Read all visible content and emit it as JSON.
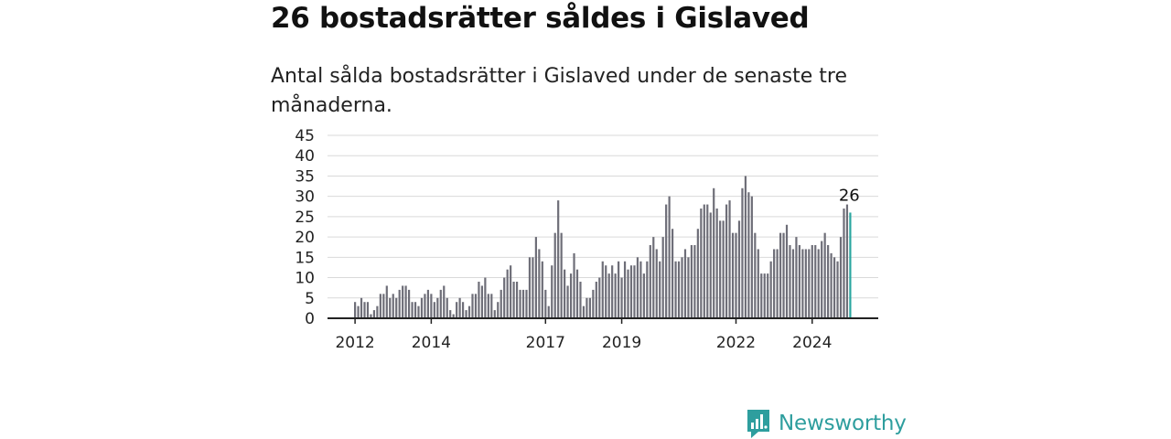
{
  "title": "26 bostadsrätter såldes i Gislaved",
  "subtitle": "Antal sålda bostadsrätter i Gislaved under de senaste tre månaderna.",
  "brand": {
    "name": "Newsworthy",
    "icon": "bar-chart-bubble-icon",
    "color": "#2e9e9e"
  },
  "chart_data": {
    "type": "bar",
    "title": "",
    "xlabel": "",
    "ylabel": "",
    "ylim": [
      0,
      45
    ],
    "yticks": [
      0,
      5,
      10,
      15,
      20,
      25,
      30,
      35,
      40,
      45
    ],
    "xtick_labels": [
      "2012",
      "2014",
      "2017",
      "2019",
      "2022",
      "2024"
    ],
    "grid": true,
    "bar_color": "#6e6e78",
    "highlight_color": "#2aa6a0",
    "highlight_label": "26",
    "series": [
      {
        "values": [
          4,
          3,
          5,
          4,
          4,
          1,
          2,
          3,
          6,
          6,
          8,
          5,
          6,
          5,
          7,
          8,
          8,
          7,
          4,
          4,
          3,
          5,
          6,
          7,
          6,
          4,
          5,
          7,
          8,
          5,
          2,
          1,
          4,
          5,
          4,
          2,
          3,
          6,
          6,
          9,
          8,
          10,
          6,
          6,
          2,
          4,
          7,
          10,
          12,
          13,
          9,
          9,
          7,
          7,
          7,
          15,
          15,
          20,
          17,
          14,
          7,
          3,
          13,
          21,
          29,
          21,
          12,
          8,
          11,
          16,
          12,
          9,
          3,
          5,
          5,
          7,
          9,
          10,
          14,
          13,
          11,
          13,
          11,
          14,
          10,
          14,
          12,
          13,
          13,
          15,
          14,
          11,
          14,
          18,
          20,
          17,
          14,
          20,
          28,
          30,
          22,
          14,
          14,
          15,
          17,
          15,
          18,
          18,
          22,
          27,
          28,
          28,
          26,
          32,
          27,
          24,
          24,
          28,
          29,
          21,
          21,
          24,
          32,
          35,
          31,
          30,
          21,
          17,
          11,
          11,
          11,
          14,
          17,
          17,
          21,
          21,
          23,
          18,
          17,
          20,
          18,
          17,
          17,
          17,
          18,
          18,
          17,
          19,
          21,
          18,
          16,
          15,
          14,
          20,
          27,
          28,
          26
        ]
      }
    ]
  }
}
